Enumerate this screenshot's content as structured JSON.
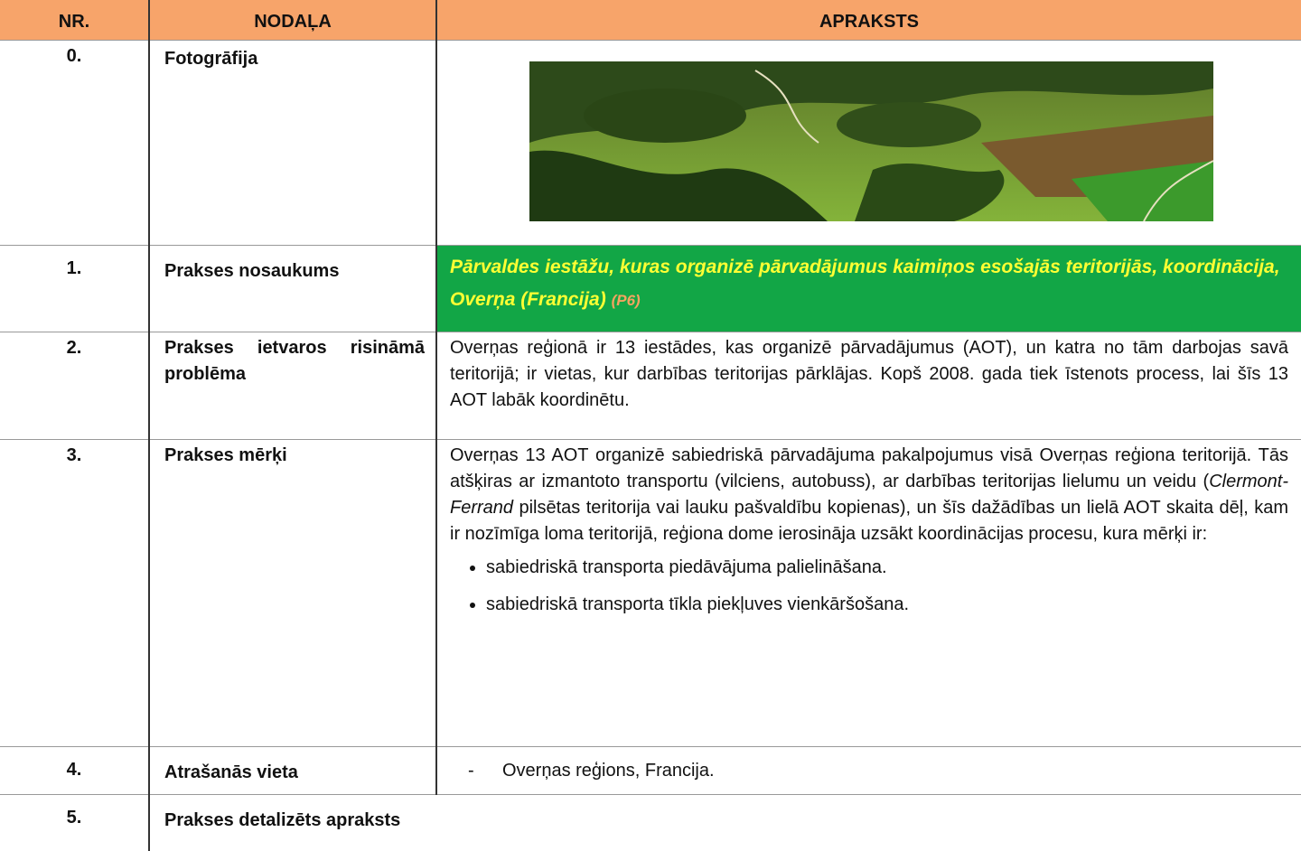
{
  "table": {
    "header": [
      "NR.",
      "NODAĻA",
      "APRAKSTS"
    ],
    "rows": [
      {
        "nr": "0.",
        "section": "Fotogrāfija"
      },
      {
        "nr": "1.",
        "section": "Prakses nosaukums",
        "title": "Pārvaldes iestāžu, kuras organizē pārvadājumus kaimiņos esošajās teritorijās, koordinācija, Overņa (Francija)",
        "code": "(P6)"
      },
      {
        "nr": "2.",
        "section": "Prakses ietvaros risināmā problēma",
        "text": "Overņas reģionā ir 13 iestādes, kas organizē pārvadājumus (AOT), un katra no tām darbojas savā teritorijā; ir vietas, kur darbības teritorijas pārklājas. Kopš 2008. gada tiek īstenots process, lai šīs 13 AOT labāk koordinētu."
      },
      {
        "nr": "3.",
        "section": "Prakses mērķi",
        "text": [
          "Overņas 13 AOT organizē sabiedriskā pārvadājuma pakalpojumus visā Overņas reģiona teritorijā. Tās atšķiras ar izmantoto transportu (vilciens, autobuss), ar darbības teritorijas lielumu un veidu (",
          "Clermont-Ferrand",
          " pilsētas teritorija vai lauku pašvaldību kopienas), un šīs dažādības un lielā AOT skaita dēļ, kam ir nozīmīga loma teritorijā, reģiona dome ierosināja uzsākt koordinācijas procesu, kura mērķi ir:"
        ],
        "items": [
          "sabiedriskā transporta piedāvājuma palielināšana.",
          "sabiedriskā transporta tīkla piekļuves vienkāršošana."
        ]
      },
      {
        "nr": "4.",
        "section": "Atrašanās vieta",
        "marker": "-",
        "text": "Overņas reģions, Francija."
      },
      {
        "nr": "5.",
        "section": "Prakses detalizēts apraksts"
      }
    ]
  }
}
